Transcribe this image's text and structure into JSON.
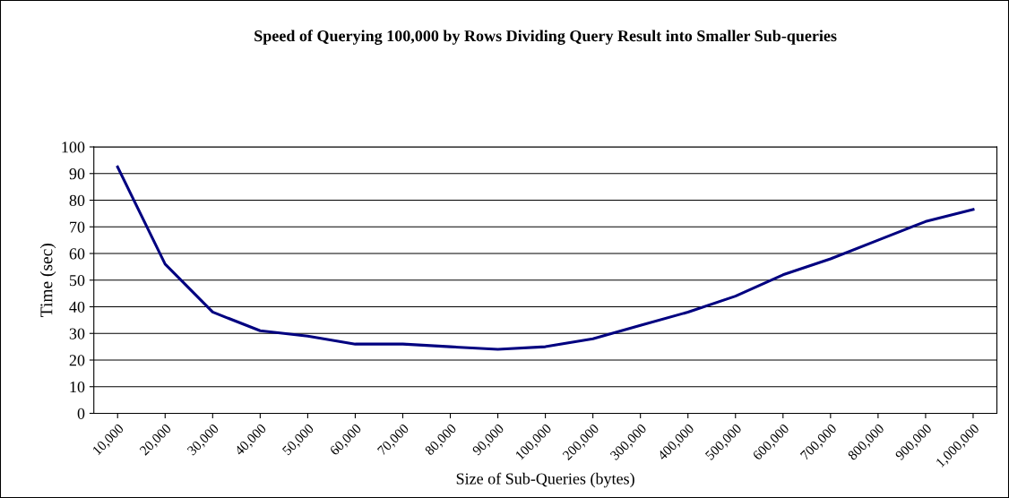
{
  "chart_data": {
    "type": "line",
    "title": "Speed of Querying 100,000 by Rows Dividing Query Result into Smaller Sub-queries",
    "xlabel": "Size of Sub-Queries (bytes)",
    "ylabel": "Time (sec)",
    "categories": [
      "10,000",
      "20,000",
      "30,000",
      "40,000",
      "50,000",
      "60,000",
      "70,000",
      "80,000",
      "90,000",
      "100,000",
      "200,000",
      "300,000",
      "400,000",
      "500,000",
      "600,000",
      "700,000",
      "800,000",
      "900,000",
      "1,000,000"
    ],
    "series": [
      {
        "color": "#000080",
        "values": [
          92.5,
          56,
          38,
          31,
          29,
          26,
          26,
          25,
          24,
          25,
          28,
          33,
          38,
          44,
          52,
          58,
          65,
          72,
          76.5
        ]
      }
    ],
    "ylim": [
      0,
      100
    ],
    "yticks": [
      0,
      10,
      20,
      30,
      40,
      50,
      60,
      70,
      80,
      90,
      100
    ],
    "grid": "y",
    "legend": false,
    "marker": "none",
    "line_style": "solid"
  }
}
